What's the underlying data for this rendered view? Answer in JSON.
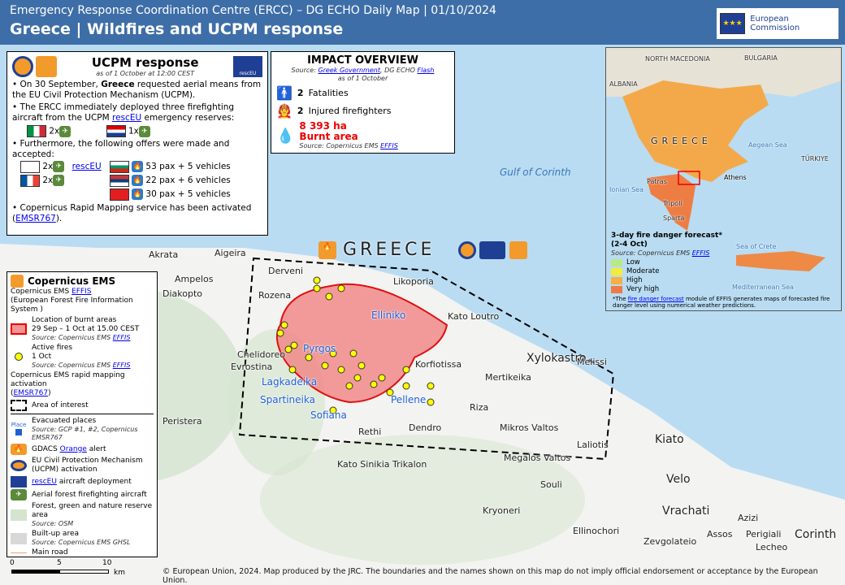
{
  "header": {
    "subtitle": "Emergency Response Coordination Centre (ERCC) – DG ECHO Daily Map | 01/10/2024",
    "title": "Greece | Wildfires and UCPM response",
    "logo_text": "European Commission"
  },
  "ucpm": {
    "title": "UCPM response",
    "asof": "as of 1 October at 12:00 CEST",
    "rescue_badge": "rescEU",
    "b1_pre": "On 30 September, ",
    "b1_bold": "Greece",
    "b1_post": " requested aerial means from the EU Civil Protection Mechanism (UCPM).",
    "b2_pre": "The ERCC immediately deployed three firefighting aircraft from the UCPM ",
    "b2_link": "rescEU",
    "b2_post": " emergency reserves:",
    "italy": "2x",
    "croatia": "1x",
    "b3": "Furthermore, the following offers were made and accepted:",
    "cyprus": "2x",
    "france": "2x",
    "offers_link": "rescEU",
    "bulgaria": "53 pax + 5 vehicles",
    "serbia": "22 pax + 6 vehicles",
    "albania": "30 pax + 5 vehicles",
    "b4_pre": "Copernicus Rapid Mapping service has been activated (",
    "b4_link": "EMSR767",
    "b4_post": ")."
  },
  "impact": {
    "title": "IMPACT OVERVIEW",
    "source_pre": "Source: ",
    "src1": "Greek Government",
    "src_mid": ", DG ECHO ",
    "src2": "Flash",
    "asof": "as of 1 October",
    "fatal_n": "2",
    "fatal": "Fatalities",
    "inj_n": "2",
    "inj": "Injured firefighters",
    "burnt": "8 393 ha",
    "burnt_label": "Burnt area",
    "burnt_src": "Source: Copernicus EMS ",
    "burnt_link": "EFFIS"
  },
  "legend": {
    "title": "Copernicus EMS",
    "effis_pre": "Copernicus EMS ",
    "effis": "EFFIS",
    "effis_full": "(European Forest Fire Information System )",
    "burnt": "Location of burnt areas",
    "burnt_date": "29 Sep – 1 Oct at 15.00 CEST",
    "src_effis": "Source: Copernicus EMS ",
    "link_effis": "EFFIS",
    "fires": "Active fires",
    "fires_date": "1 Oct",
    "rm": "Copernicus EMS rapid mapping activation",
    "rm_link": "EMSR767",
    "aoi": "Area of interest",
    "place": "Place",
    "evac": "Evacuated places",
    "evac_src": "Source: GCP #1, #2, Copernicus EMSR767",
    "gdacs_link": "Orange",
    "gdacs_pre": "GDACS ",
    "gdacs_post": " alert",
    "ucpm": "EU Civil Protection Mechanism (UCPM) activation",
    "rescue_link": "rescEU",
    "rescue": " aircraft deployment",
    "aircraft": "Aerial forest firefighting aircraft",
    "forest": "Forest, green and nature reserve area",
    "forest_src": "Source: OSM",
    "built": "Built-up area",
    "built_src": "Source: Copernicus EMS GHSL",
    "road": "Main road"
  },
  "scale": {
    "t0": "0",
    "t5": "5",
    "t10": "10",
    "unit": "km"
  },
  "map": {
    "country": "GREECE",
    "gulf": "Gulf of Corinth",
    "places": [
      "Akrata",
      "Aigeira",
      "Ampelos",
      "Derveni",
      "Likoporia",
      "Rozena",
      "Kato Loutro",
      "Chelidoreo",
      "Evrostina",
      "Korfiotissa",
      "Xylokastro",
      "Mertikeika",
      "Melissi",
      "Riza",
      "Dendro",
      "Rethi",
      "Mikros Valtos",
      "Laliotis",
      "Kiato",
      "Megalos Valtos",
      "Kato Sinikia Trikalon",
      "Souli",
      "Velo",
      "Kryoneri",
      "Vrachati",
      "Azizi",
      "Ellinochori",
      "Assos",
      "Perigiali",
      "Zevgolateio",
      "Lecheo",
      "Corinth",
      "Diakopto",
      "Peristera"
    ],
    "evacuated": [
      "Elliniko",
      "Pyrgos",
      "Lagkadeika",
      "Spartineika",
      "Sofiana",
      "Pellene"
    ]
  },
  "inset": {
    "labels": [
      "NORTH MACEDONIA",
      "BULGARIA",
      "ALBANIA",
      "GREECE",
      "Aegean Sea",
      "TÜRKIYE",
      "Ionian Sea",
      "Patras",
      "Athens",
      "Tripoli",
      "Sparta",
      "Sea of Crete",
      "Mediterranean Sea"
    ],
    "legend_title": "3-day fire danger forecast* (2-4 Oct)",
    "legend_src": "Source: Copernicus EMS ",
    "legend_link": "EFFIS",
    "classes": [
      {
        "label": "Low",
        "color": "#b8e986"
      },
      {
        "label": "Moderate",
        "color": "#f2ec3a"
      },
      {
        "label": "High",
        "color": "#f5b041"
      },
      {
        "label": "Very high",
        "color": "#ef7a45"
      }
    ],
    "note_pre": "*The ",
    "note_link": "fire danger forecast",
    "note_post": " module of EFFIS generates maps of forecasted fire danger level using numerical weather predictions."
  },
  "footer": "© European Union, 2024. Map produced by the JRC. The boundaries and the names shown on this map do not imply official endorsement or acceptance by the European Union."
}
